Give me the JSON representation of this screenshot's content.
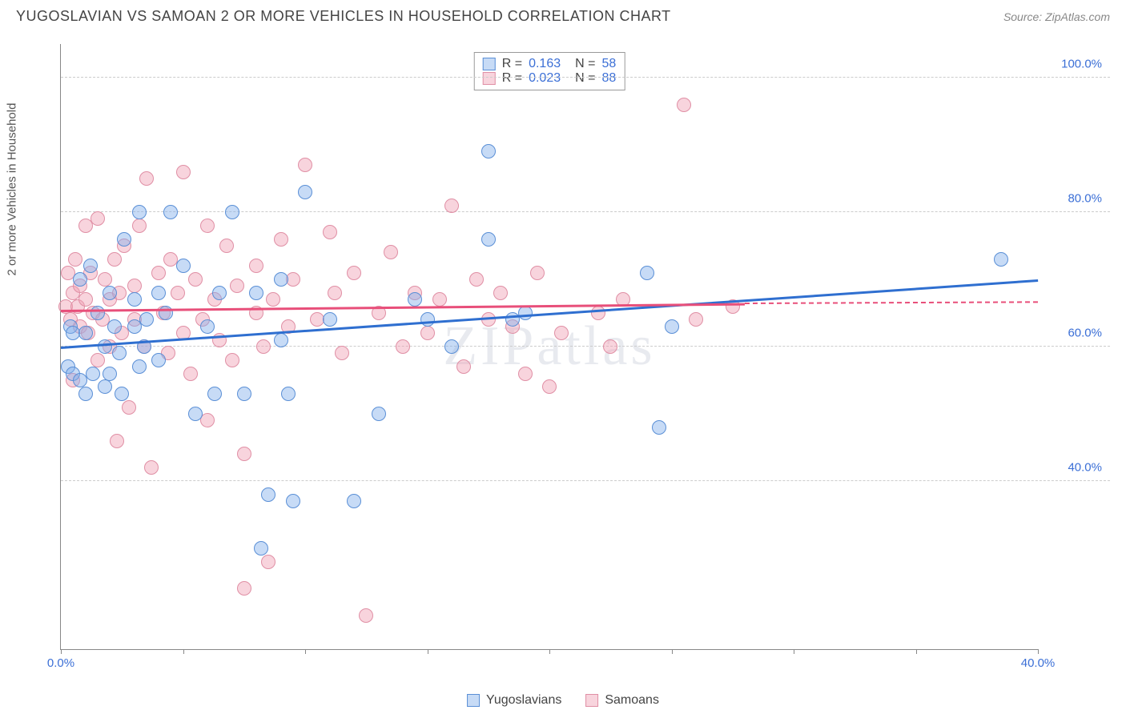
{
  "title": "YUGOSLAVIAN VS SAMOAN 2 OR MORE VEHICLES IN HOUSEHOLD CORRELATION CHART",
  "source": "Source: ZipAtlas.com",
  "ylabel": "2 or more Vehicles in Household",
  "watermark": "ZIPatlas",
  "chart": {
    "type": "scatter",
    "xlim": [
      0,
      40
    ],
    "ylim": [
      15,
      105
    ],
    "xticks": [
      0,
      5,
      10,
      15,
      20,
      25,
      30,
      35,
      40
    ],
    "xtick_labels": {
      "0": "0.0%",
      "40": "40.0%"
    },
    "yticks": [
      40,
      60,
      80,
      100
    ],
    "ytick_labels": [
      "40.0%",
      "60.0%",
      "80.0%",
      "100.0%"
    ],
    "grid_color": "#cccccc",
    "axis_color": "#888888",
    "tick_label_color": "#3b6fd6",
    "background_color": "#ffffff",
    "marker_radius": 9,
    "series": [
      {
        "name": "Yugoslavians",
        "fill": "rgba(130,175,235,0.45)",
        "stroke": "#5a8fd6",
        "line_color": "#2f6fd0",
        "R": "0.163",
        "N": "58",
        "trend": {
          "x1": 0,
          "y1": 60,
          "x2": 40,
          "y2": 70
        },
        "points": [
          [
            0.3,
            57
          ],
          [
            0.4,
            63
          ],
          [
            0.5,
            56
          ],
          [
            0.5,
            62
          ],
          [
            0.8,
            70
          ],
          [
            0.8,
            55
          ],
          [
            1.0,
            62
          ],
          [
            1.0,
            53
          ],
          [
            1.2,
            72
          ],
          [
            1.3,
            56
          ],
          [
            1.5,
            65
          ],
          [
            1.8,
            60
          ],
          [
            1.8,
            54
          ],
          [
            2.0,
            68
          ],
          [
            2.0,
            56
          ],
          [
            2.2,
            63
          ],
          [
            2.4,
            59
          ],
          [
            2.5,
            53
          ],
          [
            2.6,
            76
          ],
          [
            3.0,
            63
          ],
          [
            3.0,
            67
          ],
          [
            3.2,
            57
          ],
          [
            3.2,
            80
          ],
          [
            3.4,
            60
          ],
          [
            3.5,
            64
          ],
          [
            4.0,
            68
          ],
          [
            4.0,
            58
          ],
          [
            4.3,
            65
          ],
          [
            4.5,
            80
          ],
          [
            5.0,
            72
          ],
          [
            5.5,
            50
          ],
          [
            6.0,
            63
          ],
          [
            6.3,
            53
          ],
          [
            6.5,
            68
          ],
          [
            7.0,
            80
          ],
          [
            7.5,
            53
          ],
          [
            8.0,
            68
          ],
          [
            8.2,
            30
          ],
          [
            8.5,
            38
          ],
          [
            9.0,
            61
          ],
          [
            9.0,
            70
          ],
          [
            9.3,
            53
          ],
          [
            9.5,
            37
          ],
          [
            10.0,
            83
          ],
          [
            11.0,
            64
          ],
          [
            12.0,
            37
          ],
          [
            13.0,
            50
          ],
          [
            14.5,
            67
          ],
          [
            15.0,
            64
          ],
          [
            16.0,
            60
          ],
          [
            17.5,
            89
          ],
          [
            17.5,
            76
          ],
          [
            18.5,
            64
          ],
          [
            19.0,
            65
          ],
          [
            24.0,
            71
          ],
          [
            24.5,
            48
          ],
          [
            25.0,
            63
          ],
          [
            38.5,
            73
          ]
        ]
      },
      {
        "name": "Samoans",
        "fill": "rgba(240,160,180,0.45)",
        "stroke": "#e08fa5",
        "line_color": "#e84f7a",
        "R": "0.023",
        "N": "88",
        "trend": {
          "x1": 0,
          "y1": 65.5,
          "x2": 28,
          "y2": 66.5
        },
        "trend_dash": {
          "x1": 28,
          "y1": 66.5,
          "x2": 40,
          "y2": 66.7
        },
        "points": [
          [
            0.2,
            66
          ],
          [
            0.3,
            71
          ],
          [
            0.4,
            64
          ],
          [
            0.5,
            68
          ],
          [
            0.5,
            55
          ],
          [
            0.6,
            73
          ],
          [
            0.7,
            66
          ],
          [
            0.8,
            63
          ],
          [
            0.8,
            69
          ],
          [
            1.0,
            67
          ],
          [
            1.0,
            78
          ],
          [
            1.1,
            62
          ],
          [
            1.2,
            71
          ],
          [
            1.3,
            65
          ],
          [
            1.5,
            79
          ],
          [
            1.5,
            58
          ],
          [
            1.7,
            64
          ],
          [
            1.8,
            70
          ],
          [
            2.0,
            67
          ],
          [
            2.0,
            60
          ],
          [
            2.2,
            73
          ],
          [
            2.3,
            46
          ],
          [
            2.4,
            68
          ],
          [
            2.5,
            62
          ],
          [
            2.6,
            75
          ],
          [
            2.8,
            51
          ],
          [
            3.0,
            69
          ],
          [
            3.0,
            64
          ],
          [
            3.2,
            78
          ],
          [
            3.4,
            60
          ],
          [
            3.5,
            85
          ],
          [
            3.7,
            42
          ],
          [
            4.0,
            71
          ],
          [
            4.2,
            65
          ],
          [
            4.4,
            59
          ],
          [
            4.5,
            73
          ],
          [
            4.8,
            68
          ],
          [
            5.0,
            62
          ],
          [
            5.0,
            86
          ],
          [
            5.3,
            56
          ],
          [
            5.5,
            70
          ],
          [
            5.8,
            64
          ],
          [
            6.0,
            78
          ],
          [
            6.0,
            49
          ],
          [
            6.3,
            67
          ],
          [
            6.5,
            61
          ],
          [
            6.8,
            75
          ],
          [
            7.0,
            58
          ],
          [
            7.2,
            69
          ],
          [
            7.5,
            44
          ],
          [
            7.5,
            24
          ],
          [
            8.0,
            72
          ],
          [
            8.0,
            65
          ],
          [
            8.3,
            60
          ],
          [
            8.5,
            28
          ],
          [
            8.7,
            67
          ],
          [
            9.0,
            76
          ],
          [
            9.3,
            63
          ],
          [
            9.5,
            70
          ],
          [
            10.0,
            87
          ],
          [
            10.5,
            64
          ],
          [
            11.0,
            77
          ],
          [
            11.2,
            68
          ],
          [
            11.5,
            59
          ],
          [
            12.0,
            71
          ],
          [
            12.5,
            20
          ],
          [
            13.0,
            65
          ],
          [
            13.5,
            74
          ],
          [
            14.0,
            60
          ],
          [
            14.5,
            68
          ],
          [
            15.0,
            62
          ],
          [
            15.5,
            67
          ],
          [
            16.0,
            81
          ],
          [
            16.5,
            57
          ],
          [
            17.0,
            70
          ],
          [
            17.5,
            64
          ],
          [
            18.0,
            68
          ],
          [
            18.5,
            63
          ],
          [
            19.0,
            56
          ],
          [
            19.5,
            71
          ],
          [
            20.0,
            54
          ],
          [
            20.5,
            62
          ],
          [
            22.0,
            65
          ],
          [
            22.5,
            60
          ],
          [
            23.0,
            67
          ],
          [
            25.5,
            96
          ],
          [
            26.0,
            64
          ],
          [
            27.5,
            66
          ]
        ]
      }
    ]
  },
  "legend": {
    "series1_label": "Yugoslavians",
    "series2_label": "Samoans"
  }
}
